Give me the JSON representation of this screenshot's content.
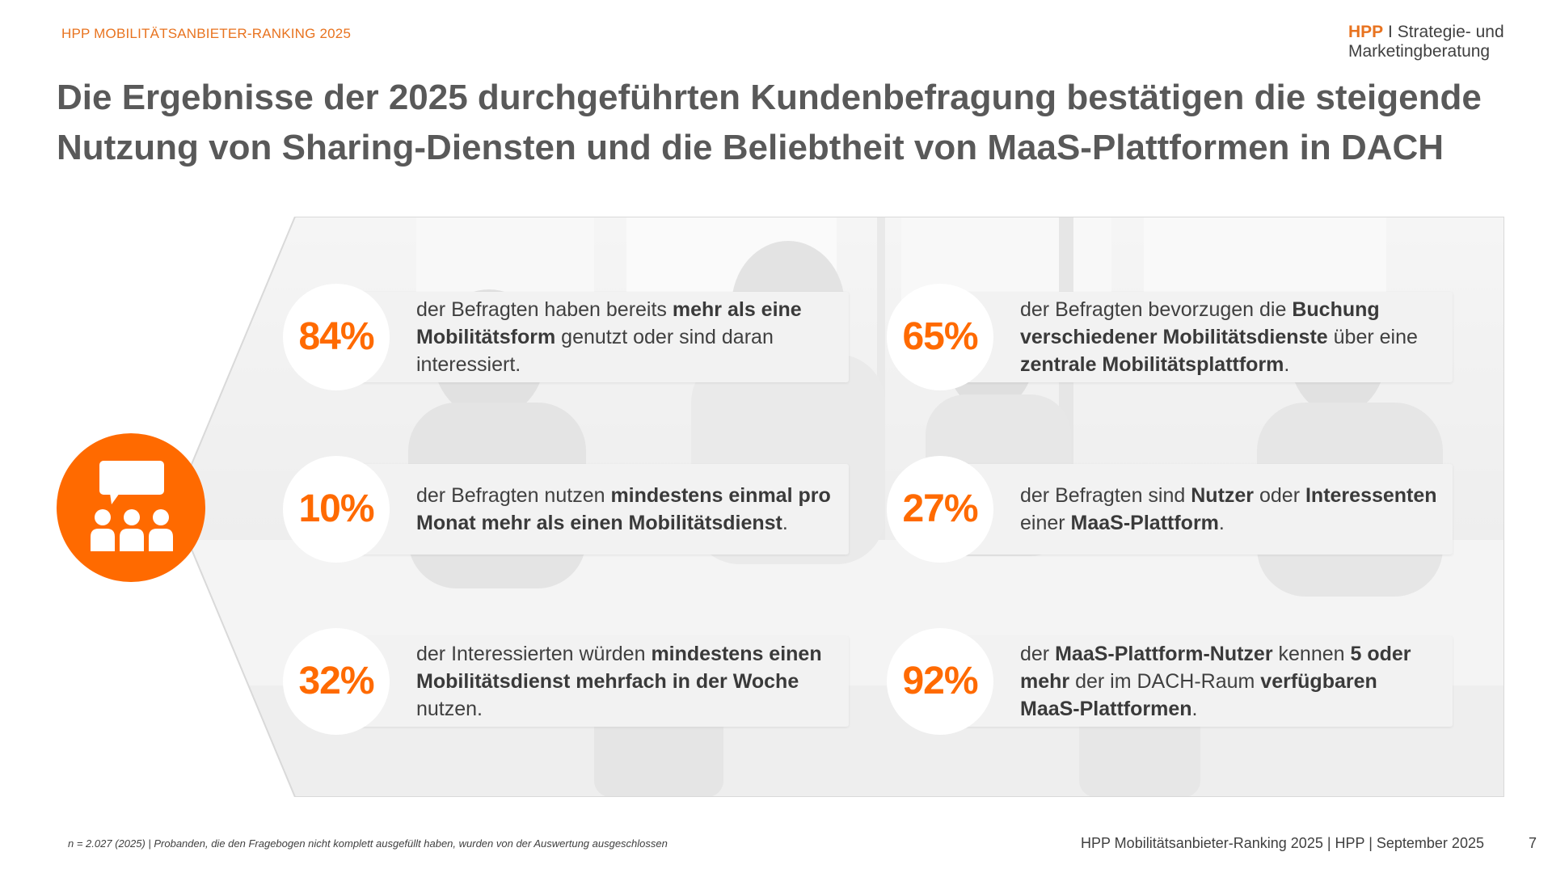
{
  "header": {
    "top_label": "HPP MOBILITÄTSANBIETER-RANKING 2025",
    "brand_hpp": "HPP",
    "brand_sep": " I ",
    "brand_line1": "Strategie- und",
    "brand_line2": "Marketingberatung"
  },
  "title": {
    "line1": "Die Ergebnisse der 2025 durchgeführten Kundenbefragung bestätigen die steigende",
    "line2": "Nutzung von Sharing-Diensten und die Beliebtheit von MaaS-Plattformen in DACH"
  },
  "badge": {
    "icon": "audience-speech-icon"
  },
  "stats": [
    {
      "value": "84%",
      "parts": [
        {
          "t": "der Befragten haben bereits ",
          "b": false
        },
        {
          "t": "mehr als eine Mobilitätsform",
          "b": true
        },
        {
          "t": " genutzt oder sind daran interessiert.",
          "b": false
        }
      ]
    },
    {
      "value": "65%",
      "parts": [
        {
          "t": "der Befragten bevorzugen die ",
          "b": false
        },
        {
          "t": "Buchung verschiedener Mobilitätsdienste",
          "b": true
        },
        {
          "t": " über eine ",
          "b": false
        },
        {
          "t": "zentrale Mobilitätsplattform",
          "b": true
        },
        {
          "t": ".",
          "b": false
        }
      ]
    },
    {
      "value": "10%",
      "parts": [
        {
          "t": "der Befragten nutzen ",
          "b": false
        },
        {
          "t": "mindestens einmal pro Monat mehr als einen Mobilitätsdienst",
          "b": true
        },
        {
          "t": ".",
          "b": false
        }
      ]
    },
    {
      "value": "27%",
      "parts": [
        {
          "t": "der Befragten sind ",
          "b": false
        },
        {
          "t": "Nutzer",
          "b": true
        },
        {
          "t": " oder ",
          "b": false
        },
        {
          "t": "Interessenten",
          "b": true
        },
        {
          "t": " einer ",
          "b": false
        },
        {
          "t": "MaaS-Plattform",
          "b": true
        },
        {
          "t": ".",
          "b": false
        }
      ]
    },
    {
      "value": "32%",
      "parts": [
        {
          "t": "der Interessierten würden ",
          "b": false
        },
        {
          "t": "mindestens einen Mobilitätsdienst mehrfach in der Woche",
          "b": true
        },
        {
          "t": " nutzen.",
          "b": false
        }
      ]
    },
    {
      "value": "92%",
      "parts": [
        {
          "t": "der ",
          "b": false
        },
        {
          "t": "MaaS-Plattform-Nutzer",
          "b": true
        },
        {
          "t": " kennen ",
          "b": false
        },
        {
          "t": "5 oder mehr",
          "b": true
        },
        {
          "t": " der im DACH-Raum ",
          "b": false
        },
        {
          "t": "verfügbaren MaaS-Plattformen",
          "b": true
        },
        {
          "t": ".",
          "b": false
        }
      ]
    }
  ],
  "footer": {
    "footnote": "n = 2.027 (2025) | Probanden, die den Fragebogen nicht komplett ausgefüllt haben, wurden von der Auswertung ausgeschlossen",
    "source": "HPP Mobilitätsanbieter-Ranking 2025 | HPP | September 2025",
    "page_number": "7"
  },
  "colors": {
    "accent": "#ff6a00",
    "label_orange": "#e8731f",
    "card_bg": "#f2f2f2",
    "text": "#404040"
  }
}
